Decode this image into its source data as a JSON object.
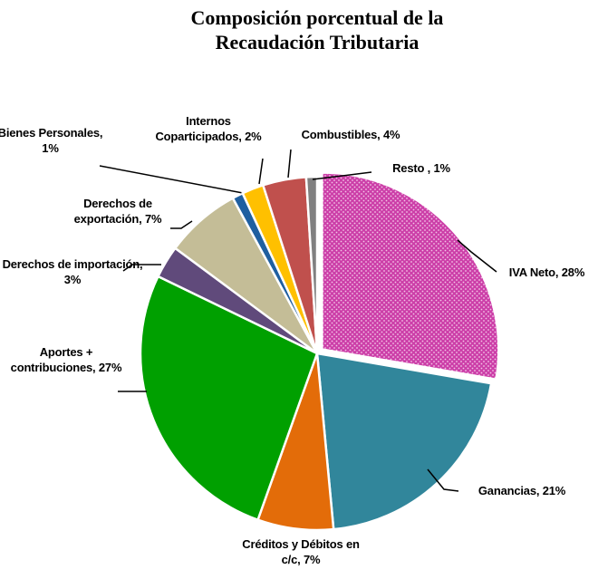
{
  "chart_data": {
    "type": "pie",
    "title": "Composición porcentual de la Recaudación Tributaria",
    "categories": [
      "IVA Neto,",
      "Ganancias,",
      "Créditos y Débitos en c/c,",
      "Aportes + contribuciones,",
      "Derechos de importación,",
      "Derechos de exportación,",
      "Bienes Personales,",
      "Internos Coparticipados,",
      "Combustibles,",
      "Resto ,"
    ],
    "values": [
      28,
      21,
      7,
      27,
      3,
      7,
      1,
      2,
      4,
      1
    ],
    "value_labels": [
      "28%",
      "21%",
      "7%",
      "27%",
      "3%",
      "7%",
      "1%",
      "2%",
      "4%",
      "1%"
    ],
    "colors": [
      "#cc3fa8",
      "#31869b",
      "#e36c09",
      "#00a000",
      "#604a7b",
      "#c4bd97",
      "#1f5fa0",
      "#ffc000",
      "#c0504d",
      "#808080"
    ]
  }
}
